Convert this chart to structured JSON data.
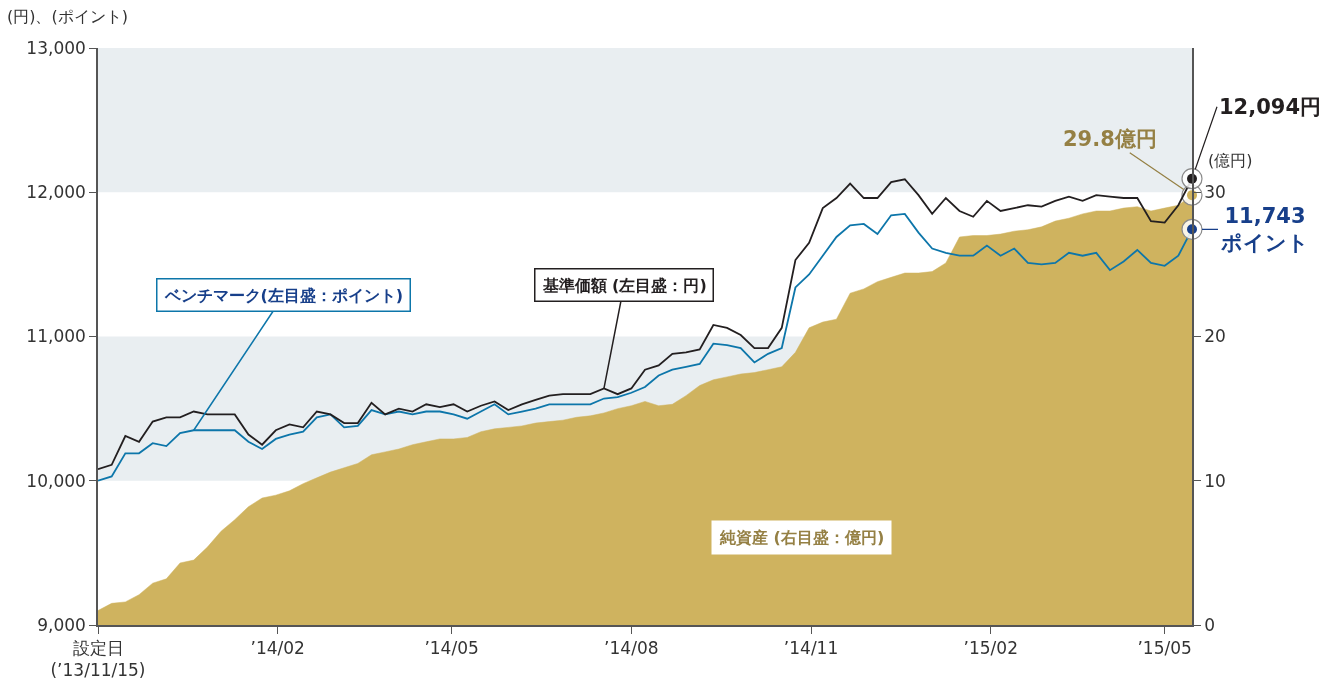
{
  "chart_data": {
    "type": "line",
    "legend": false,
    "ylabel": "(円)、(ポイント)",
    "y2label": "(億円)",
    "x": [
      "2013-11-15",
      "2013-11-22",
      "2013-11-29",
      "2013-12-06",
      "2013-12-13",
      "2013-12-20",
      "2013-12-27",
      "2014-01-03",
      "2014-01-10",
      "2014-01-17",
      "2014-01-24",
      "2014-01-31",
      "2014-02-07",
      "2014-02-14",
      "2014-02-21",
      "2014-02-28",
      "2014-03-07",
      "2014-03-14",
      "2014-03-21",
      "2014-03-28",
      "2014-04-04",
      "2014-04-11",
      "2014-04-18",
      "2014-04-25",
      "2014-05-02",
      "2014-05-09",
      "2014-05-16",
      "2014-05-23",
      "2014-05-30",
      "2014-06-06",
      "2014-06-13",
      "2014-06-20",
      "2014-06-27",
      "2014-07-04",
      "2014-07-11",
      "2014-07-18",
      "2014-07-25",
      "2014-08-01",
      "2014-08-08",
      "2014-08-15",
      "2014-08-22",
      "2014-08-29",
      "2014-09-05",
      "2014-09-12",
      "2014-09-19",
      "2014-09-26",
      "2014-10-03",
      "2014-10-10",
      "2014-10-17",
      "2014-10-24",
      "2014-10-31",
      "2014-11-07",
      "2014-11-14",
      "2014-11-21",
      "2014-11-28",
      "2014-12-05",
      "2014-12-12",
      "2014-12-19",
      "2014-12-26",
      "2015-01-02",
      "2015-01-09",
      "2015-01-16",
      "2015-01-23",
      "2015-01-30",
      "2015-02-06",
      "2015-02-13",
      "2015-02-20",
      "2015-02-27",
      "2015-03-06",
      "2015-03-13",
      "2015-03-20",
      "2015-03-27",
      "2015-04-03",
      "2015-04-10",
      "2015-04-17",
      "2015-04-24",
      "2015-05-01",
      "2015-05-08",
      "2015-05-15",
      "2015-05-22",
      "2015-05-29"
    ],
    "series": [
      {
        "type": "area",
        "axis": "y2",
        "name": "純資産 (右目盛：億円)",
        "color": "#cfb35f",
        "values": [
          1.0,
          1.5,
          1.6,
          2.1,
          2.9,
          3.2,
          4.3,
          4.5,
          5.4,
          6.5,
          7.3,
          8.2,
          8.8,
          9.0,
          9.3,
          9.8,
          10.2,
          10.6,
          10.9,
          11.2,
          11.8,
          12.0,
          12.2,
          12.5,
          12.7,
          12.9,
          12.9,
          13.0,
          13.4,
          13.6,
          13.7,
          13.8,
          14.0,
          14.1,
          14.2,
          14.4,
          14.5,
          14.7,
          15.0,
          15.2,
          15.5,
          15.2,
          15.3,
          15.9,
          16.6,
          17.0,
          17.2,
          17.4,
          17.5,
          17.7,
          17.9,
          18.9,
          20.6,
          21.0,
          21.2,
          23.0,
          23.3,
          23.8,
          24.1,
          24.4,
          24.4,
          24.5,
          25.1,
          26.9,
          27.0,
          27.0,
          27.1,
          27.3,
          27.4,
          27.6,
          28.0,
          28.2,
          28.5,
          28.7,
          28.7,
          28.9,
          29.0,
          28.7,
          28.9,
          29.1,
          29.8
        ],
        "value_labels": [
          null,
          null,
          null,
          null,
          null,
          null,
          null,
          null,
          null,
          null,
          null,
          null,
          null,
          null,
          null,
          null,
          null,
          null,
          null,
          null,
          null,
          null,
          null,
          null,
          null,
          null,
          null,
          null,
          null,
          null,
          null,
          null,
          null,
          null,
          null,
          null,
          null,
          null,
          null,
          null,
          null,
          null,
          null,
          null,
          null,
          null,
          null,
          null,
          null,
          null,
          null,
          null,
          null,
          null,
          null,
          null,
          null,
          null,
          null,
          null,
          null,
          null,
          null,
          null,
          null,
          null,
          null,
          null,
          null,
          null,
          null,
          null,
          null,
          null,
          null,
          null,
          null,
          null,
          null,
          null,
          "29.8億円"
        ]
      },
      {
        "name": "ベンチマーク(左目盛：ポイント)",
        "color": "#0d76aa",
        "values": [
          10000,
          10030,
          10190,
          10190,
          10260,
          10240,
          10330,
          10350,
          10350,
          10350,
          10350,
          10270,
          10220,
          10290,
          10320,
          10340,
          10440,
          10460,
          10370,
          10380,
          10490,
          10460,
          10480,
          10460,
          10480,
          10480,
          10460,
          10430,
          10480,
          10530,
          10460,
          10480,
          10500,
          10530,
          10530,
          10530,
          10530,
          10570,
          10580,
          10610,
          10650,
          10730,
          10770,
          10790,
          10810,
          10950,
          10940,
          10920,
          10820,
          10880,
          10920,
          11340,
          11430,
          11560,
          11690,
          11770,
          11780,
          11710,
          11840,
          11850,
          11720,
          11610,
          11580,
          11560,
          11560,
          11630,
          11560,
          11610,
          11510,
          11500,
          11510,
          11580,
          11560,
          11580,
          11460,
          11520,
          11600,
          11510,
          11490,
          11560,
          11743
        ],
        "value_labels": [
          null,
          null,
          null,
          null,
          null,
          null,
          null,
          null,
          null,
          null,
          null,
          null,
          null,
          null,
          null,
          null,
          null,
          null,
          null,
          null,
          null,
          null,
          null,
          null,
          null,
          null,
          null,
          null,
          null,
          null,
          null,
          null,
          null,
          null,
          null,
          null,
          null,
          null,
          null,
          null,
          null,
          null,
          null,
          null,
          null,
          null,
          null,
          null,
          null,
          null,
          null,
          null,
          null,
          null,
          null,
          null,
          null,
          null,
          null,
          null,
          null,
          null,
          null,
          null,
          null,
          null,
          null,
          null,
          null,
          null,
          null,
          null,
          null,
          null,
          null,
          null,
          null,
          null,
          null,
          null,
          "11,743\nポイント"
        ]
      },
      {
        "name": "基準価額 (左目盛：円)",
        "color": "#231f20",
        "values": [
          10080,
          10110,
          10310,
          10270,
          10410,
          10440,
          10440,
          10480,
          10460,
          10460,
          10460,
          10320,
          10250,
          10350,
          10390,
          10370,
          10480,
          10460,
          10400,
          10400,
          10540,
          10460,
          10500,
          10480,
          10530,
          10510,
          10530,
          10480,
          10520,
          10550,
          10490,
          10530,
          10560,
          10590,
          10600,
          10600,
          10600,
          10640,
          10600,
          10640,
          10770,
          10800,
          10880,
          10890,
          10910,
          11080,
          11060,
          11010,
          10920,
          10920,
          11060,
          11530,
          11650,
          11890,
          11960,
          12060,
          11960,
          11960,
          12070,
          12090,
          11980,
          11850,
          11960,
          11870,
          11830,
          11940,
          11870,
          11890,
          11910,
          11900,
          11940,
          11970,
          11940,
          11980,
          11970,
          11960,
          11960,
          11800,
          11790,
          11910,
          12094
        ],
        "value_labels": [
          null,
          null,
          null,
          null,
          null,
          null,
          null,
          null,
          null,
          null,
          null,
          null,
          null,
          null,
          null,
          null,
          null,
          null,
          null,
          null,
          null,
          null,
          null,
          null,
          null,
          null,
          null,
          null,
          null,
          null,
          null,
          null,
          null,
          null,
          null,
          null,
          null,
          null,
          null,
          null,
          null,
          null,
          null,
          null,
          null,
          null,
          null,
          null,
          null,
          null,
          null,
          null,
          null,
          null,
          null,
          null,
          null,
          null,
          null,
          null,
          null,
          null,
          null,
          null,
          null,
          null,
          null,
          null,
          null,
          null,
          null,
          null,
          null,
          null,
          null,
          null,
          null,
          null,
          null,
          null,
          "12,094円"
        ]
      }
    ],
    "xlim": [
      "2013-11-15",
      "2015-05-29"
    ],
    "xticks": [
      {
        "value": "2013-11-15",
        "label": "設定日\n(’13/11/15)"
      },
      {
        "value": "2014-02-15",
        "label": "’14/02"
      },
      {
        "value": "2014-05-15",
        "label": "’14/05"
      },
      {
        "value": "2014-08-15",
        "label": "’14/08"
      },
      {
        "value": "2014-11-15",
        "label": "’14/11"
      },
      {
        "value": "2015-02-15",
        "label": "’15/02"
      },
      {
        "value": "2015-05-15",
        "label": "’15/05"
      }
    ],
    "ylim": [
      9000,
      13000
    ],
    "yticks": [
      {
        "value": 9000,
        "label": "9,000"
      },
      {
        "value": 10000,
        "label": "10,000"
      },
      {
        "value": 11000,
        "label": "11,000"
      },
      {
        "value": 12000,
        "label": "12,000"
      },
      {
        "value": 13000,
        "label": "13,000"
      }
    ],
    "y2lim": [
      0,
      40
    ],
    "y2ticks": [
      0,
      10,
      20,
      30
    ],
    "bands": [
      {
        "axis": "y",
        "from": 10000,
        "to": 11000,
        "color": "#e9eef1"
      },
      {
        "axis": "y",
        "from": 12000,
        "to": 13000,
        "color": "#e9eef1"
      }
    ]
  }
}
